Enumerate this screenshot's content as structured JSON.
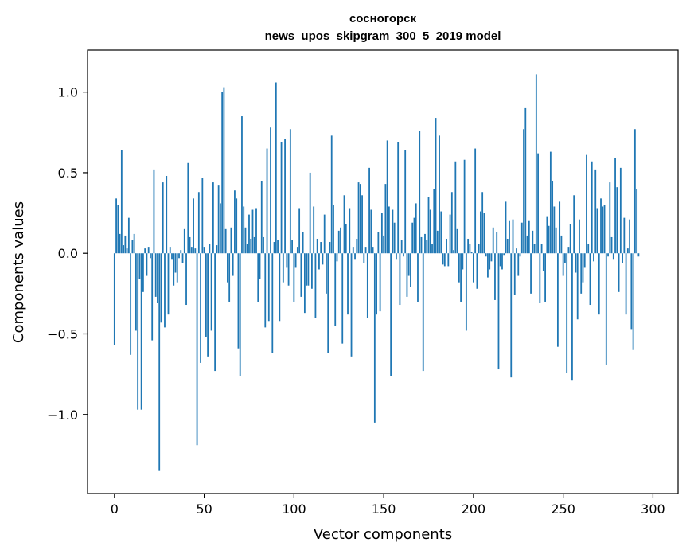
{
  "chart_data": {
    "type": "bar",
    "title": "сосногорск",
    "subtitle": "news_upos_skipgram_300_5_2019 model",
    "xlabel": "Vector components",
    "ylabel": "Components values",
    "xlim": [
      -15,
      314
    ],
    "ylim": [
      -1.49,
      1.26
    ],
    "xticks": [
      0,
      50,
      100,
      150,
      200,
      250,
      300
    ],
    "yticks": [
      -1.0,
      -0.5,
      0.0,
      0.5,
      1.0
    ],
    "xtick_labels": [
      "0",
      "50",
      "100",
      "150",
      "200",
      "250",
      "300"
    ],
    "ytick_labels": [
      "−1.0",
      "−0.5",
      "0.0",
      "0.5",
      "1.0"
    ],
    "bar_color": "#1f77b4",
    "values": [
      -0.57,
      0.34,
      0.3,
      0.12,
      0.64,
      0.05,
      0.11,
      0.03,
      0.22,
      -0.63,
      0.08,
      0.12,
      -0.48,
      -0.97,
      -0.16,
      -0.97,
      -0.24,
      0.03,
      -0.14,
      0.04,
      -0.03,
      -0.54,
      0.52,
      -0.27,
      -0.31,
      -1.35,
      -0.43,
      0.44,
      -0.46,
      0.48,
      -0.38,
      0.04,
      -0.04,
      -0.2,
      -0.12,
      -0.18,
      -0.03,
      0.02,
      -0.06,
      0.15,
      -0.32,
      0.56,
      0.1,
      0.04,
      0.34,
      0.03,
      -1.19,
      0.38,
      -0.68,
      0.47,
      0.04,
      -0.52,
      -0.64,
      0.06,
      -0.48,
      0.44,
      -0.73,
      0.05,
      0.42,
      0.31,
      1.0,
      1.03,
      0.15,
      -0.18,
      -0.3,
      0.16,
      -0.14,
      0.39,
      0.34,
      -0.59,
      -0.76,
      0.85,
      0.29,
      0.16,
      0.06,
      0.24,
      0.09,
      0.27,
      0.1,
      0.28,
      -0.3,
      -0.16,
      0.45,
      0.1,
      -0.46,
      0.65,
      -0.42,
      0.78,
      -0.62,
      0.07,
      1.06,
      0.08,
      -0.42,
      0.69,
      -0.18,
      0.71,
      -0.09,
      -0.2,
      0.77,
      0.08,
      -0.3,
      -0.09,
      0.04,
      0.28,
      -0.27,
      0.13,
      -0.37,
      -0.2,
      -0.2,
      0.5,
      -0.22,
      0.29,
      -0.4,
      0.09,
      -0.1,
      0.07,
      -0.07,
      0.24,
      -0.25,
      -0.62,
      0.07,
      0.73,
      0.3,
      -0.45,
      -0.05,
      0.14,
      0.16,
      -0.56,
      0.36,
      0.18,
      -0.38,
      0.28,
      -0.64,
      0.04,
      -0.04,
      0.09,
      0.44,
      0.43,
      0.36,
      -0.06,
      0.04,
      -0.4,
      0.53,
      0.27,
      0.04,
      -1.05,
      -0.38,
      0.13,
      -0.36,
      0.25,
      0.11,
      0.43,
      0.7,
      0.29,
      -0.76,
      0.27,
      0.19,
      -0.04,
      0.69,
      -0.32,
      0.08,
      -0.02,
      0.64,
      -0.27,
      -0.14,
      -0.21,
      0.19,
      0.22,
      0.31,
      -0.3,
      0.76,
      0.1,
      -0.73,
      0.12,
      0.08,
      0.35,
      0.27,
      0.06,
      0.4,
      0.84,
      0.14,
      0.73,
      0.26,
      -0.07,
      -0.08,
      0.09,
      -0.08,
      0.24,
      0.38,
      0.02,
      0.57,
      0.15,
      -0.18,
      -0.3,
      -0.1,
      0.58,
      -0.48,
      0.09,
      0.06,
      0.01,
      -0.18,
      0.65,
      -0.22,
      0.06,
      0.26,
      0.38,
      0.25,
      -0.02,
      -0.15,
      -0.1,
      -0.05,
      0.16,
      -0.29,
      0.13,
      -0.72,
      -0.08,
      -0.1,
      -0.01,
      0.32,
      0.09,
      0.2,
      -0.77,
      0.21,
      -0.26,
      0.03,
      -0.14,
      -0.02,
      0.19,
      0.77,
      0.9,
      0.11,
      0.2,
      -0.25,
      0.14,
      0.06,
      1.11,
      0.62,
      -0.31,
      0.06,
      -0.11,
      -0.3,
      0.23,
      0.17,
      0.63,
      0.45,
      0.29,
      0.16,
      -0.58,
      0.32,
      0.11,
      -0.14,
      -0.06,
      -0.74,
      0.04,
      0.18,
      -0.79,
      0.36,
      -0.12,
      -0.41,
      0.21,
      -0.25,
      -0.18,
      -0.09,
      0.61,
      0.06,
      -0.32,
      0.57,
      -0.05,
      0.52,
      0.28,
      -0.38,
      0.34,
      0.29,
      0.3,
      -0.69,
      -0.02,
      0.44,
      0.1,
      -0.04,
      0.59,
      0.41,
      -0.24,
      0.53,
      -0.06,
      0.22,
      -0.38,
      0.03,
      0.21,
      -0.47,
      -0.6,
      0.77,
      0.4,
      -0.02
    ]
  }
}
